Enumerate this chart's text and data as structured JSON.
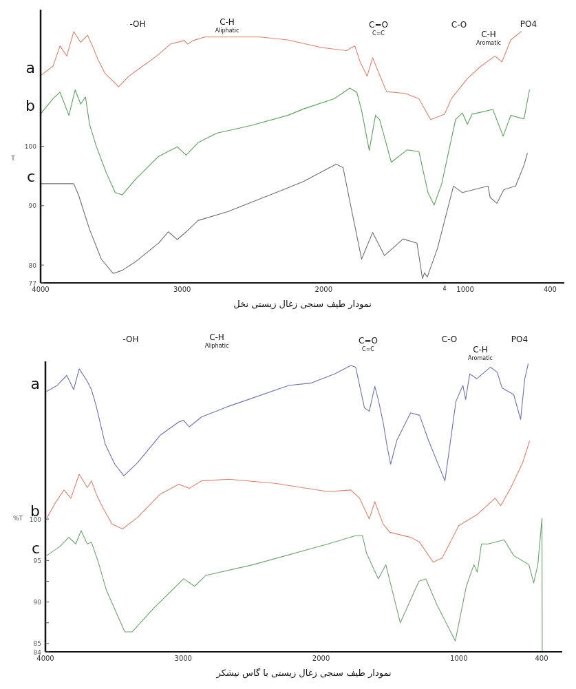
{
  "chart_data": [
    {
      "type": "line",
      "xlabel": "نمودار طیف سنجی زغال زیستی نخل",
      "ylabel": "T",
      "xlim": [
        4000,
        300
      ],
      "ylim": [
        77,
        123
      ],
      "xticks": [
        4000,
        3000,
        2000,
        1000,
        400
      ],
      "yticks": [
        77,
        80,
        90,
        100
      ],
      "grid": false,
      "annotations": [
        "-OH",
        "C-H\nAliphatic",
        "C=O\nC=C",
        "C-O",
        "C-H\nAromatic",
        "PO4",
        "4"
      ],
      "series": [
        {
          "name": "a",
          "color": "#d9826f",
          "x": [
            3995,
            3912,
            3863,
            3815,
            3766,
            3717,
            3668,
            3634,
            3595,
            3546,
            3498,
            3449,
            3376,
            3278,
            3180,
            3083,
            2985,
            2961,
            2922,
            2839,
            2449,
            2254,
            2010,
            1839,
            1780,
            1741,
            1693,
            1654,
            1620,
            1556,
            1424,
            1327,
            1244,
            1146,
            1098,
            985,
            888,
            790,
            741,
            678,
            605
          ],
          "values": [
            112.0,
            113.5,
            116.9,
            115.2,
            119.3,
            117.5,
            118.7,
            116.9,
            114.6,
            112.3,
            111.2,
            110.0,
            111.8,
            113.5,
            115.2,
            117.2,
            117.8,
            117.2,
            117.8,
            118.4,
            118.4,
            117.9,
            116.6,
            116.1,
            116.9,
            114.1,
            111.8,
            114.9,
            112.9,
            109.2,
            108.9,
            108.0,
            104.5,
            105.4,
            108.0,
            111.4,
            113.5,
            115.2,
            114.2,
            117.9,
            119.3
          ]
        },
        {
          "name": "b",
          "color": "#5f9e5f",
          "x": [
            3995,
            3912,
            3863,
            3800,
            3756,
            3717,
            3683,
            3654,
            3605,
            3537,
            3473,
            3424,
            3327,
            3166,
            3034,
            2971,
            2888,
            2756,
            2512,
            2254,
            2141,
            1927,
            1815,
            1766,
            1732,
            1678,
            1634,
            1605,
            1522,
            1410,
            1327,
            1263,
            1220,
            1166,
            1068,
            1020,
            985,
            951,
            805,
            732,
            678,
            585,
            546
          ],
          "values": [
            105.6,
            108.0,
            109.1,
            105.2,
            109.5,
            107.1,
            108.3,
            103.7,
            99.9,
            95.6,
            92.2,
            91.8,
            94.5,
            98.3,
            99.9,
            98.5,
            100.6,
            102.2,
            103.5,
            105.2,
            106.3,
            108.0,
            109.8,
            109.1,
            106.0,
            99.3,
            105.2,
            104.5,
            97.3,
            99.4,
            99.1,
            92.2,
            90.1,
            93.7,
            104.5,
            105.6,
            103.7,
            105.4,
            106.2,
            101.7,
            105.2,
            104.6,
            109.5
          ]
        },
        {
          "name": "c",
          "color": "#6e6e6e",
          "x": [
            3995,
            3766,
            3732,
            3654,
            3571,
            3488,
            3424,
            3327,
            3166,
            3098,
            3034,
            2971,
            2888,
            2678,
            2254,
            2141,
            1912,
            1863,
            1815,
            1732,
            1654,
            1571,
            1439,
            1341,
            1302,
            1288,
            1268,
            1195,
            1083,
            1020,
            839,
            824,
            776,
            727,
            644,
            585,
            561
          ],
          "values": [
            93.7,
            93.7,
            91.8,
            86.0,
            81.0,
            78.6,
            79.1,
            80.6,
            83.7,
            85.6,
            84.3,
            85.6,
            87.5,
            89.0,
            93.0,
            94.1,
            97.0,
            96.4,
            90.7,
            81.0,
            85.5,
            81.6,
            84.4,
            83.7,
            77.7,
            78.7,
            78.0,
            82.9,
            93.3,
            92.2,
            93.3,
            91.4,
            90.4,
            92.7,
            93.3,
            96.8,
            98.8
          ]
        }
      ]
    },
    {
      "type": "line",
      "xlabel": "نمودار طیف سنجی زغال زیستی با گاس نیشکر",
      "ylabel": "%T",
      "xlim": [
        4000,
        250
      ],
      "ylim": [
        84,
        119
      ],
      "xticks": [
        4000,
        3000,
        2000,
        1000,
        400
      ],
      "yticks": [
        84,
        85,
        {
          "value": 87.5,
          "label": null
        },
        90,
        {
          "value": 92.5,
          "label": null
        },
        95,
        100
      ],
      "grid": false,
      "annotations": [
        "-OH",
        "C-H\nAliphatic",
        "C=O\nC=C",
        "C-O",
        "C-H\nAromatic",
        "PO4"
      ],
      "series": [
        {
          "name": "a",
          "color": "#6b72ad",
          "x": [
            3990,
            3915,
            3845,
            3795,
            3755,
            3696,
            3666,
            3631,
            3566,
            3496,
            3431,
            3331,
            3167,
            3032,
            2997,
            2957,
            2867,
            2668,
            2234,
            2069,
            1899,
            1784,
            1749,
            1685,
            1650,
            1610,
            1585,
            1550,
            1520,
            1495,
            1450,
            1350,
            1285,
            1221,
            1101,
            1021,
            971,
            951,
            921,
            871,
            771,
            722,
            687,
            602,
            552,
            522,
            497
          ],
          "values": [
            115.4,
            116.1,
            117.3,
            115.6,
            118.1,
            116.6,
            115.6,
            113.6,
            109.0,
            106.6,
            105.2,
            106.8,
            110.1,
            111.7,
            111.9,
            111.1,
            112.3,
            113.6,
            116.1,
            116.4,
            117.5,
            118.5,
            118.3,
            113.4,
            113.0,
            116.0,
            114.4,
            111.7,
            108.7,
            106.6,
            109.5,
            112.8,
            112.5,
            109.5,
            104.6,
            114.2,
            116.1,
            114.4,
            117.5,
            116.9,
            118.3,
            117.7,
            115.8,
            115.0,
            112.0,
            116.9,
            118.7
          ]
        },
        {
          "name": "b",
          "color": "#d9826f",
          "x": [
            3990,
            3930,
            3865,
            3815,
            3755,
            3696,
            3666,
            3631,
            3581,
            3516,
            3441,
            3331,
            3167,
            3032,
            2957,
            2867,
            2668,
            2333,
            1949,
            1784,
            1720,
            1650,
            1610,
            1550,
            1500,
            1350,
            1285,
            1186,
            1121,
            1001,
            871,
            737,
            697,
            622,
            537,
            487
          ],
          "values": [
            100.1,
            101.9,
            103.5,
            102.5,
            105.4,
            103.8,
            104.6,
            103.0,
            101.3,
            99.4,
            98.8,
            100.2,
            103.0,
            104.2,
            103.7,
            104.6,
            104.8,
            104.3,
            103.3,
            103.5,
            102.5,
            100.0,
            102.1,
            99.4,
            98.4,
            97.8,
            97.2,
            94.8,
            95.3,
            99.2,
            100.5,
            102.5,
            101.6,
            103.8,
            106.8,
            109.4
          ]
        },
        {
          "name": "c",
          "color": "#6fa06f",
          "x": [
            3990,
            3895,
            3830,
            3780,
            3741,
            3696,
            3666,
            3616,
            3557,
            3424,
            3371,
            3212,
            2997,
            2917,
            2837,
            2493,
            1949,
            1749,
            1700,
            1670,
            1585,
            1530,
            1425,
            1290,
            1240,
            1160,
            1026,
            946,
            891,
            866,
            836,
            786,
            672,
            602,
            492,
            457,
            427,
            397,
            395
          ],
          "values": [
            95.6,
            96.7,
            97.8,
            97.0,
            98.6,
            97.0,
            97.2,
            94.8,
            91.4,
            86.4,
            86.4,
            89.3,
            92.8,
            91.9,
            93.2,
            94.5,
            97.0,
            98.0,
            98.0,
            95.9,
            92.8,
            94.5,
            87.5,
            92.5,
            92.8,
            89.7,
            85.3,
            91.9,
            94.5,
            93.6,
            97.0,
            97.0,
            97.5,
            95.6,
            94.5,
            92.3,
            94.5,
            100.1,
            84.1
          ]
        }
      ]
    }
  ]
}
